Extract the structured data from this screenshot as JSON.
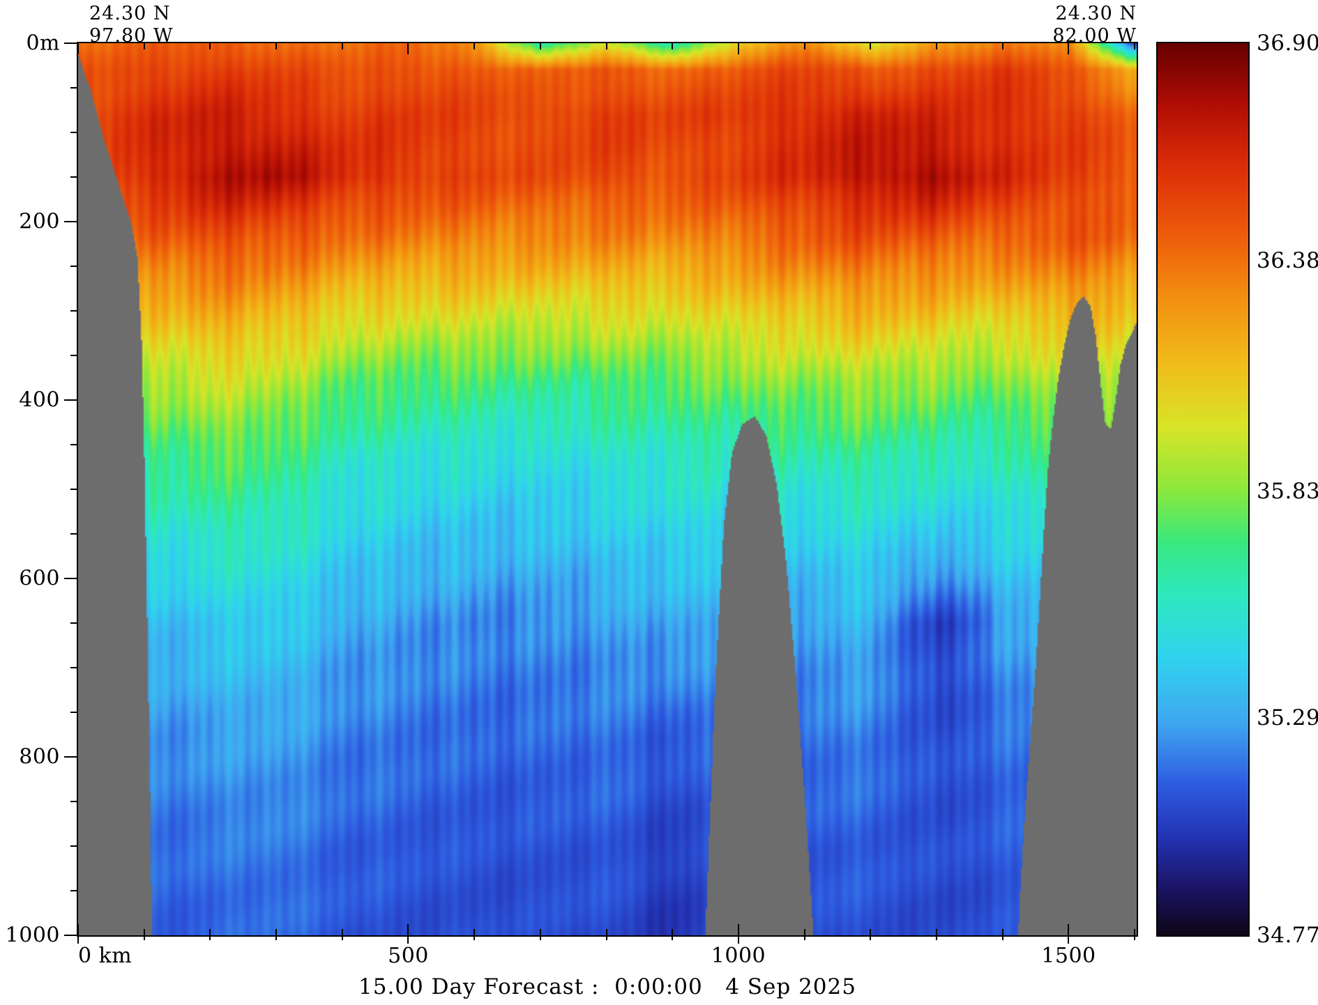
{
  "header": {
    "left": {
      "lat": "24.30 N",
      "lon": "97.80 W"
    },
    "right": {
      "lat": "24.30 N",
      "lon": "82.00 W"
    }
  },
  "footer": {
    "title": "15.00 Day Forecast :  0:00:00   4 Sep 2025"
  },
  "axes": {
    "y_ticks": [
      {
        "value": 0,
        "label": "0m"
      },
      {
        "value": 200,
        "label": "200"
      },
      {
        "value": 400,
        "label": "400"
      },
      {
        "value": 600,
        "label": "600"
      },
      {
        "value": 800,
        "label": "800"
      },
      {
        "value": 1000,
        "label": "1000"
      }
    ],
    "x_ticks": [
      {
        "value": 0,
        "label": "0 km"
      },
      {
        "value": 500,
        "label": "500"
      },
      {
        "value": 1000,
        "label": "1000"
      },
      {
        "value": 1500,
        "label": "1500"
      }
    ]
  },
  "chart_data": {
    "type": "heatmap",
    "title": "15.00 Day Forecast :  0:00:00   4 Sep 2025",
    "description": "Vertical ocean salinity cross-section along 24.30 N from 97.80 W to 82.00 W, depth 0-1000 m",
    "section": {
      "start": {
        "lat": "24.30 N",
        "lon": "97.80 W"
      },
      "end": {
        "lat": "24.30 N",
        "lon": "82.00 W"
      }
    },
    "x_label": "km",
    "x_range_km": [
      0,
      1603
    ],
    "depth_range_m": [
      0,
      1000
    ],
    "minor_tick_x_km": 100,
    "minor_tick_y_m": 50,
    "colorbar": {
      "min": 34.77,
      "max": 36.9,
      "tick_values": [
        36.9,
        36.38,
        35.83,
        35.29,
        34.77
      ],
      "tick_labels": [
        "36.90",
        "36.38",
        "35.83",
        "35.29",
        "34.77"
      ]
    },
    "colormap": [
      [
        0.0,
        "#0d0617"
      ],
      [
        0.05,
        "#1a1260"
      ],
      [
        0.11,
        "#2333b4"
      ],
      [
        0.17,
        "#2e5ce0"
      ],
      [
        0.24,
        "#3fa8f0"
      ],
      [
        0.31,
        "#30d2ee"
      ],
      [
        0.38,
        "#2ee8c0"
      ],
      [
        0.44,
        "#38e87e"
      ],
      [
        0.5,
        "#8ce83c"
      ],
      [
        0.57,
        "#d8e428"
      ],
      [
        0.64,
        "#f0bc1a"
      ],
      [
        0.71,
        "#f29211"
      ],
      [
        0.78,
        "#ee5f0b"
      ],
      [
        0.86,
        "#dc2e08"
      ],
      [
        0.93,
        "#b00d04"
      ],
      [
        1.0,
        "#660000"
      ]
    ],
    "grid": {
      "x_km": [
        0,
        100,
        200,
        300,
        400,
        500,
        600,
        700,
        800,
        900,
        1000,
        1100,
        1200,
        1300,
        1400,
        1500,
        1600
      ],
      "depth_m": [
        0,
        30,
        80,
        150,
        220,
        300,
        380,
        460,
        550,
        650,
        780,
        900,
        1000
      ],
      "values": [
        [
          36.36,
          36.42,
          36.46,
          36.42,
          36.36,
          36.4,
          36.3,
          35.6,
          35.95,
          35.55,
          36.1,
          36.32,
          35.95,
          36.25,
          36.36,
          36.3,
          35.05
        ],
        [
          36.46,
          36.52,
          36.56,
          36.52,
          36.46,
          36.5,
          36.46,
          36.4,
          36.46,
          36.42,
          36.46,
          36.52,
          36.46,
          36.52,
          36.56,
          36.46,
          36.22
        ],
        [
          36.52,
          36.6,
          36.66,
          36.62,
          36.56,
          36.56,
          36.52,
          36.5,
          36.56,
          36.52,
          36.56,
          36.62,
          36.66,
          36.62,
          36.6,
          36.56,
          36.42
        ],
        [
          36.48,
          36.6,
          36.72,
          36.76,
          36.62,
          36.56,
          36.52,
          36.48,
          36.52,
          36.48,
          36.54,
          36.62,
          36.72,
          36.76,
          36.62,
          36.54,
          36.48
        ],
        [
          36.35,
          36.42,
          36.5,
          36.46,
          36.38,
          36.34,
          36.32,
          36.3,
          36.32,
          36.3,
          36.36,
          36.44,
          36.48,
          36.44,
          36.4,
          36.46,
          36.4
        ],
        [
          36.08,
          36.12,
          36.22,
          36.18,
          36.06,
          36.02,
          36.02,
          35.98,
          36.02,
          36.0,
          36.08,
          36.12,
          36.18,
          36.12,
          36.08,
          36.2,
          36.12
        ],
        [
          35.82,
          35.86,
          35.96,
          35.92,
          35.78,
          35.72,
          35.72,
          35.68,
          35.72,
          35.74,
          35.82,
          35.84,
          35.88,
          35.82,
          35.78,
          35.98,
          35.86
        ],
        [
          35.62,
          35.66,
          35.76,
          35.72,
          35.58,
          35.54,
          35.52,
          35.48,
          35.54,
          35.58,
          35.6,
          35.62,
          35.66,
          35.6,
          35.58,
          35.76,
          35.62
        ],
        [
          35.46,
          35.5,
          35.58,
          35.58,
          35.45,
          35.4,
          35.36,
          35.36,
          35.4,
          35.45,
          35.42,
          35.44,
          35.48,
          35.38,
          35.44,
          35.52,
          35.44
        ],
        [
          35.3,
          35.32,
          35.4,
          35.42,
          35.3,
          35.26,
          35.22,
          35.22,
          35.26,
          35.3,
          35.26,
          35.28,
          35.32,
          35.02,
          35.26,
          35.34,
          35.28
        ],
        [
          35.2,
          35.22,
          35.26,
          35.28,
          35.2,
          35.18,
          35.15,
          35.15,
          35.18,
          35.12,
          35.16,
          35.18,
          35.2,
          35.08,
          35.16,
          35.22,
          35.18
        ],
        [
          35.14,
          35.15,
          35.18,
          35.2,
          35.14,
          35.12,
          35.1,
          35.1,
          35.12,
          35.04,
          35.1,
          35.12,
          35.13,
          35.08,
          35.12,
          35.16,
          35.12
        ],
        [
          35.1,
          35.12,
          35.14,
          35.16,
          35.11,
          35.09,
          35.08,
          35.08,
          35.09,
          35.0,
          35.08,
          35.1,
          35.1,
          35.06,
          35.09,
          35.12,
          35.1
        ]
      ]
    },
    "bathymetry_mask": {
      "color": "#6d6d6d",
      "profiles": [
        [
          [
            0,
            12
          ],
          [
            20,
            55
          ],
          [
            40,
            110
          ],
          [
            60,
            155
          ],
          [
            80,
            200
          ],
          [
            90,
            240
          ],
          [
            96,
            330
          ],
          [
            100,
            450
          ],
          [
            104,
            620
          ],
          [
            108,
            800
          ],
          [
            112,
            1000
          ],
          [
            114,
            1100
          ]
        ],
        [
          [
            945,
            1100
          ],
          [
            955,
            900
          ],
          [
            966,
            700
          ],
          [
            978,
            540
          ],
          [
            990,
            460
          ],
          [
            1005,
            428
          ],
          [
            1025,
            418
          ],
          [
            1042,
            440
          ],
          [
            1058,
            495
          ],
          [
            1072,
            580
          ],
          [
            1086,
            700
          ],
          [
            1100,
            840
          ],
          [
            1112,
            980
          ],
          [
            1120,
            1100
          ]
        ],
        [
          [
            1418,
            1100
          ],
          [
            1426,
            960
          ],
          [
            1434,
            860
          ],
          [
            1442,
            780
          ],
          [
            1450,
            700
          ],
          [
            1457,
            615
          ],
          [
            1463,
            540
          ],
          [
            1469,
            475
          ],
          [
            1476,
            425
          ],
          [
            1484,
            378
          ],
          [
            1493,
            340
          ],
          [
            1503,
            308
          ],
          [
            1513,
            290
          ],
          [
            1523,
            284
          ],
          [
            1533,
            295
          ],
          [
            1541,
            328
          ],
          [
            1549,
            385
          ],
          [
            1556,
            428
          ],
          [
            1564,
            432
          ],
          [
            1571,
            402
          ],
          [
            1578,
            362
          ],
          [
            1586,
            340
          ],
          [
            1595,
            326
          ],
          [
            1603,
            312
          ]
        ]
      ]
    }
  }
}
